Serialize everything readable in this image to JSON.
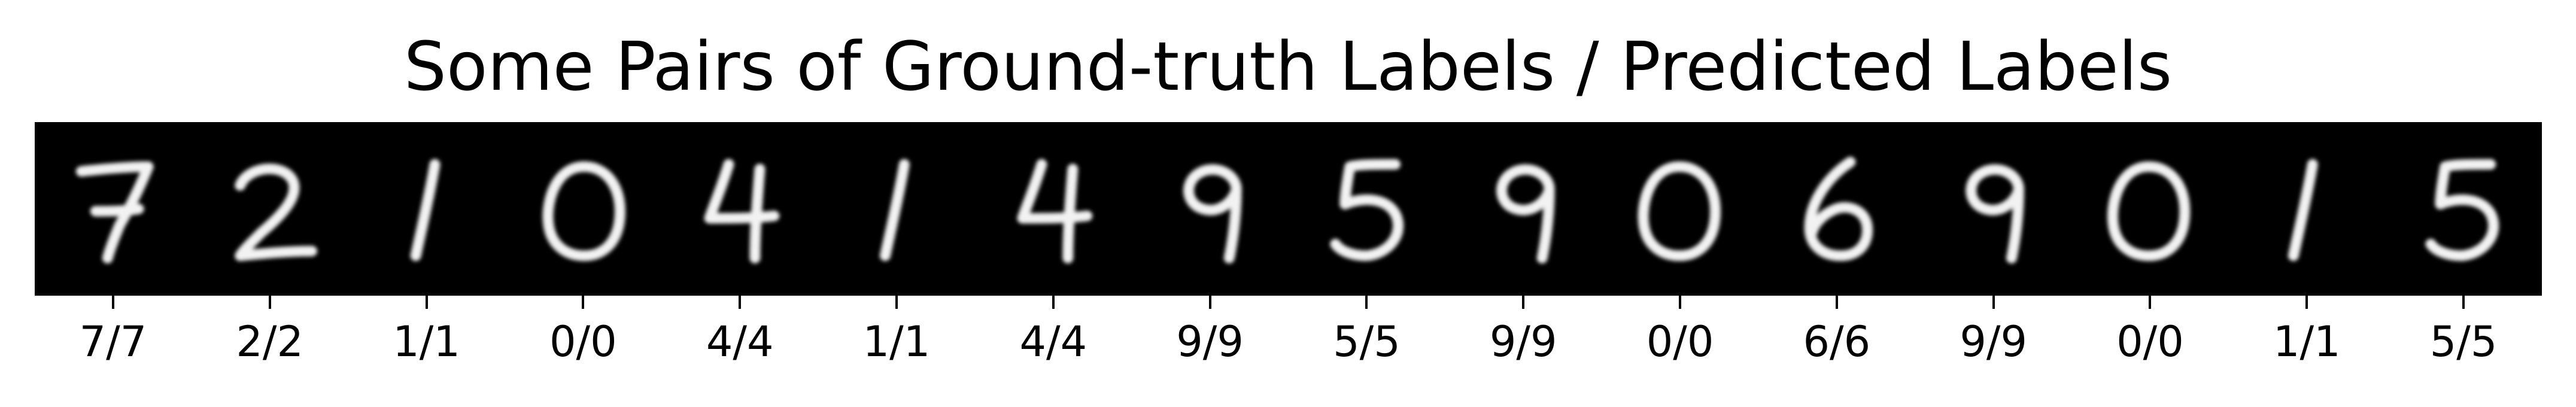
{
  "figure": {
    "title": "Some Pairs of Ground-truth Labels / Predicted Labels",
    "background": "#000000",
    "digit_color": "#f2f2f2"
  },
  "samples": [
    {
      "digit": "7",
      "label": "7/7"
    },
    {
      "digit": "2",
      "label": "2/2"
    },
    {
      "digit": "1",
      "label": "1/1"
    },
    {
      "digit": "0",
      "label": "0/0"
    },
    {
      "digit": "4",
      "label": "4/4"
    },
    {
      "digit": "1",
      "label": "1/1"
    },
    {
      "digit": "4",
      "label": "4/4"
    },
    {
      "digit": "9",
      "label": "9/9"
    },
    {
      "digit": "5",
      "label": "5/5"
    },
    {
      "digit": "9",
      "label": "9/9"
    },
    {
      "digit": "0",
      "label": "0/0"
    },
    {
      "digit": "6",
      "label": "6/6"
    },
    {
      "digit": "9",
      "label": "9/9"
    },
    {
      "digit": "0",
      "label": "0/0"
    },
    {
      "digit": "1",
      "label": "1/1"
    },
    {
      "digit": "5",
      "label": "5/5"
    }
  ]
}
